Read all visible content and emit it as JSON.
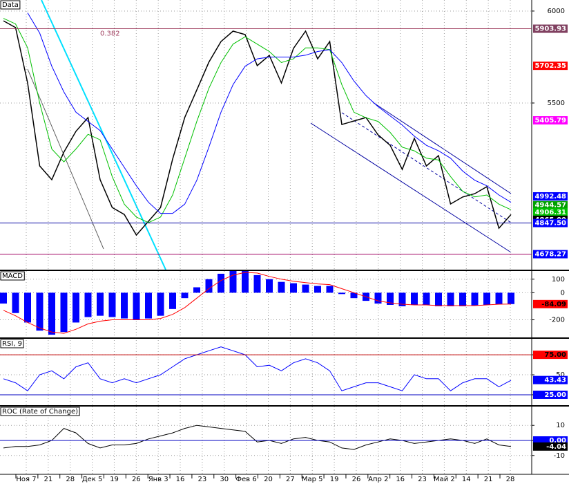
{
  "x_axis": {
    "labels": [
      "Ноя 7",
      "21",
      "28",
      "Дек 5",
      "19",
      "26",
      "Янв 3",
      "16",
      "23",
      "30",
      "Фев 6",
      "20",
      "27",
      "Мар 5",
      "19",
      "26",
      "Апр 2",
      "16",
      "23",
      "Май 2",
      "14",
      "21",
      "28"
    ]
  },
  "chart_data": [
    {
      "type": "line",
      "title": "Data",
      "ylim": [
        4594,
        6060
      ],
      "yticks": [
        6000,
        5500
      ],
      "grid": true,
      "series": [
        {
          "color": "#000000",
          "values": [
            5947,
            5910,
            5609,
            5158,
            5083,
            5233,
            5346,
            5421,
            5083,
            4932,
            4894,
            4782,
            4857,
            4932,
            5195,
            5421,
            5571,
            5722,
            5834,
            5891,
            5872,
            5703,
            5759,
            5609,
            5797,
            5891,
            5740,
            5834,
            5383,
            5402,
            5421,
            5327,
            5270,
            5139,
            5308,
            5158,
            5214,
            4951,
            4989,
            5007,
            5045,
            4819,
            4894
          ]
        },
        {
          "color": "#00c000",
          "values": [
            5960,
            5930,
            5800,
            5500,
            5250,
            5180,
            5250,
            5330,
            5300,
            5100,
            4950,
            4880,
            4850,
            4880,
            5000,
            5200,
            5400,
            5580,
            5720,
            5820,
            5860,
            5820,
            5780,
            5720,
            5740,
            5800,
            5800,
            5790,
            5600,
            5450,
            5420,
            5400,
            5340,
            5260,
            5240,
            5200,
            5190,
            5100,
            5020,
            4990,
            5000,
            4950,
            4920
          ]
        },
        {
          "color": "#0000ff",
          "values": [
            null,
            null,
            5990,
            5880,
            5700,
            5560,
            5450,
            5400,
            5350,
            5250,
            5150,
            5050,
            4960,
            4900,
            4900,
            4950,
            5080,
            5260,
            5450,
            5600,
            5700,
            5740,
            5750,
            5750,
            5750,
            5760,
            5780,
            5790,
            5720,
            5620,
            5540,
            5480,
            5430,
            5380,
            5320,
            5270,
            5240,
            5200,
            5130,
            5080,
            5050,
            5000,
            4960
          ]
        }
      ],
      "levels": [
        {
          "value": 5903.93,
          "bg": "#804060",
          "fg": "#ffffff",
          "line": "#a04060",
          "annotation": 0.382
        },
        {
          "value": 5702.35,
          "bg": "#ff0000",
          "fg": "#ffffff"
        },
        {
          "value": 5405.79,
          "bg": "#ff00ff",
          "fg": "#ffffff"
        },
        {
          "value": 4992.48,
          "bg": "#0000ff",
          "fg": "#ffffff"
        },
        {
          "value": 4944.57,
          "bg": "#00a000",
          "fg": "#ffffff"
        },
        {
          "value": 4906.31,
          "bg": "#00c000",
          "fg": "#ffffff"
        },
        {
          "value": 4865,
          "label": "4865.00",
          "bg": "#000000",
          "fg": "#ffffff"
        },
        {
          "value": 4847.5,
          "label": "4847.50",
          "bg": "#0000ff",
          "fg": "#ffffff",
          "line": "#0000a0"
        },
        {
          "value": 4678.27,
          "bg": "#0000ff",
          "fg": "#ffffff",
          "line": "#a00060"
        }
      ]
    },
    {
      "type": "macd",
      "title": "MACD",
      "ylim": [
        -330,
        160
      ],
      "yticks": [
        100,
        0,
        -200
      ],
      "grid": true,
      "series": [
        {
          "color": "#0000ff",
          "values": [
            -80,
            -150,
            -220,
            -280,
            -310,
            -290,
            -220,
            -180,
            -170,
            -180,
            -190,
            -200,
            -190,
            -170,
            -120,
            -40,
            40,
            100,
            140,
            160,
            160,
            130,
            100,
            80,
            70,
            60,
            50,
            50,
            -10,
            -40,
            -60,
            -80,
            -90,
            -100,
            -90,
            -90,
            -100,
            -100,
            -100,
            -95,
            -90,
            -85,
            -84
          ]
        },
        {
          "color": "#ff0000",
          "values": [
            -130,
            -170,
            -220,
            -260,
            -290,
            -300,
            -270,
            -230,
            -210,
            -200,
            -200,
            -200,
            -200,
            -190,
            -160,
            -110,
            -40,
            30,
            90,
            130,
            150,
            145,
            120,
            100,
            85,
            75,
            65,
            60,
            30,
            0,
            -30,
            -60,
            -75,
            -85,
            -90,
            -90,
            -95,
            -95,
            -95,
            -95,
            -90,
            -85,
            -84
          ]
        }
      ],
      "levels": [
        {
          "value": -84.09,
          "bg": "#ff0000",
          "fg": "#000000"
        }
      ]
    },
    {
      "type": "line",
      "title": "RSI, 9",
      "ylim": [
        12,
        95
      ],
      "yticks": [
        75,
        50,
        25
      ],
      "grid": true,
      "series": [
        {
          "color": "#0000ff",
          "values": [
            45,
            40,
            30,
            50,
            55,
            45,
            60,
            65,
            45,
            40,
            45,
            40,
            45,
            50,
            60,
            70,
            75,
            80,
            85,
            80,
            75,
            60,
            62,
            55,
            65,
            70,
            65,
            55,
            30,
            35,
            40,
            40,
            35,
            30,
            50,
            45,
            45,
            30,
            40,
            45,
            45,
            35,
            43
          ]
        }
      ],
      "levels": [
        {
          "value": 75,
          "label": "75.00",
          "bg": "#ff0000",
          "fg": "#000000",
          "line": "#c00000"
        },
        {
          "value": 43.43,
          "bg": "#0000ff",
          "fg": "#ffffff"
        },
        {
          "value": 25,
          "label": "25.00",
          "bg": "#0000ff",
          "fg": "#ffffff",
          "line": "#0000c0"
        }
      ]
    },
    {
      "type": "line",
      "title": "ROC (Rate of Change)",
      "ylim": [
        -22.5,
        22.5
      ],
      "yticks": [
        10,
        {
          "value": 0,
          "label": "0.00"
        },
        -10
      ],
      "grid": true,
      "series": [
        {
          "color": "#000000",
          "values": [
            -5,
            -4,
            -4,
            -3,
            0,
            8,
            5,
            -2,
            -5,
            -3,
            -3,
            -2,
            1,
            3,
            5,
            8,
            10,
            9,
            8,
            7,
            6,
            -1,
            0,
            -2,
            1,
            2,
            0,
            -1,
            -5,
            -6,
            -3,
            -1,
            1,
            0,
            -2,
            -1,
            0,
            1,
            0,
            -2,
            1,
            -3,
            -4
          ]
        }
      ],
      "levels": [
        {
          "value": 0,
          "label": "0.00",
          "bg": "#0000ff",
          "fg": "#ffffff",
          "line": "#0000c0"
        },
        {
          "value": -4.04,
          "bg": "#000000",
          "fg": "#ffffff"
        }
      ]
    }
  ]
}
